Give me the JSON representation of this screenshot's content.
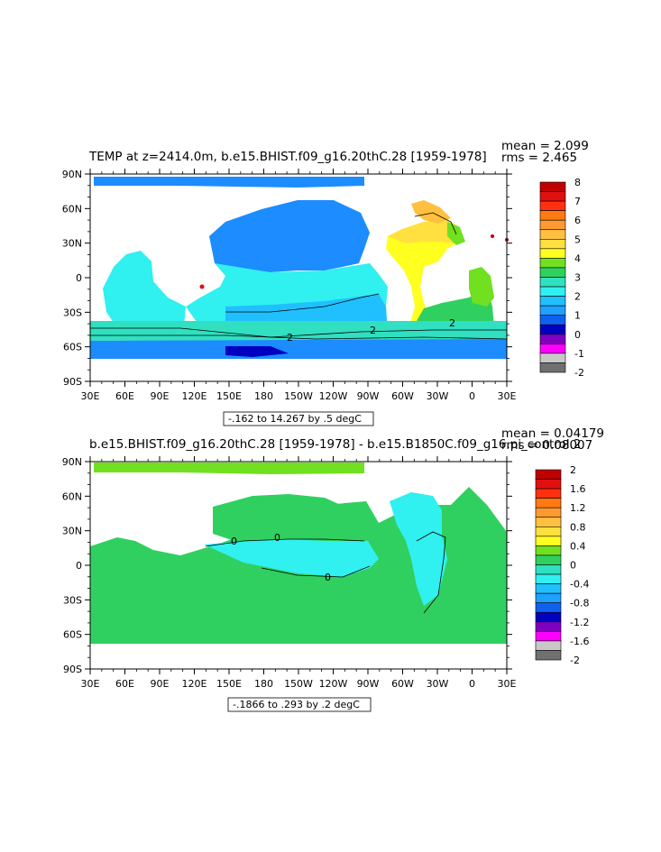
{
  "panels": [
    {
      "title": "TEMP at z=2414.0m, b.e15.BHIST.f09_g16.20thC.28 [1959-1978]",
      "stat_mean": "mean = 2.099",
      "stat_rms": "rms = 2.465",
      "contour_info": "-.162 to 14.267 by .5 degC",
      "lon_labels": [
        "30E",
        "60E",
        "90E",
        "120E",
        "150E",
        "180",
        "150W",
        "120W",
        "90W",
        "60W",
        "30W",
        "0",
        "30E"
      ],
      "lat_labels": [
        "90N",
        "60N",
        "30N",
        "0",
        "30S",
        "60S",
        "90S"
      ],
      "contour_labels": [
        "2",
        "2",
        "2"
      ],
      "colorbar": {
        "labels": [
          "8",
          "7",
          "6",
          "5",
          "4",
          "3",
          "2",
          "1",
          "0",
          "-1",
          "-2"
        ],
        "colors": [
          "#c00000",
          "#e01010",
          "#ff3010",
          "#ff7a10",
          "#ff9a30",
          "#ffc040",
          "#ffe040",
          "#ffff20",
          "#70e020",
          "#30d060",
          "#30e0c0",
          "#30f0f0",
          "#20c0ff",
          "#20a0ff",
          "#1060f0",
          "#0000c0",
          "#8000c0",
          "#ff00ff",
          "#c8c8c8",
          "#707070"
        ]
      }
    },
    {
      "title": "b.e15.BHIST.f09_g16.20thC.28 [1959-1978] - b.e15.B1850C.f09_g16.pi_control.2",
      "stat_mean": "mean = 0.04179",
      "stat_rms": "rms = 0.08007",
      "contour_info": "-.1866 to .293 by .2 degC",
      "lon_labels": [
        "30E",
        "60E",
        "90E",
        "120E",
        "150E",
        "180",
        "150W",
        "120W",
        "90W",
        "60W",
        "30W",
        "0",
        "30E"
      ],
      "lat_labels": [
        "90N",
        "60N",
        "30N",
        "0",
        "30S",
        "60S",
        "90S"
      ],
      "contour_labels": [
        "0",
        "0",
        "0"
      ],
      "colorbar": {
        "labels": [
          "2",
          "1.6",
          "1.2",
          "0.8",
          "0.4",
          "0",
          "-0.4",
          "-0.8",
          "-1.2",
          "-1.6",
          "-2"
        ],
        "colors": [
          "#c00000",
          "#e01010",
          "#ff3010",
          "#ff7a10",
          "#ff9a30",
          "#ffc040",
          "#ffe040",
          "#ffff20",
          "#70e020",
          "#30d060",
          "#30e0c0",
          "#30f0f0",
          "#20c0ff",
          "#20a0ff",
          "#1060f0",
          "#0000c0",
          "#8000c0",
          "#ff00ff",
          "#c8c8c8",
          "#707070"
        ]
      }
    }
  ]
}
